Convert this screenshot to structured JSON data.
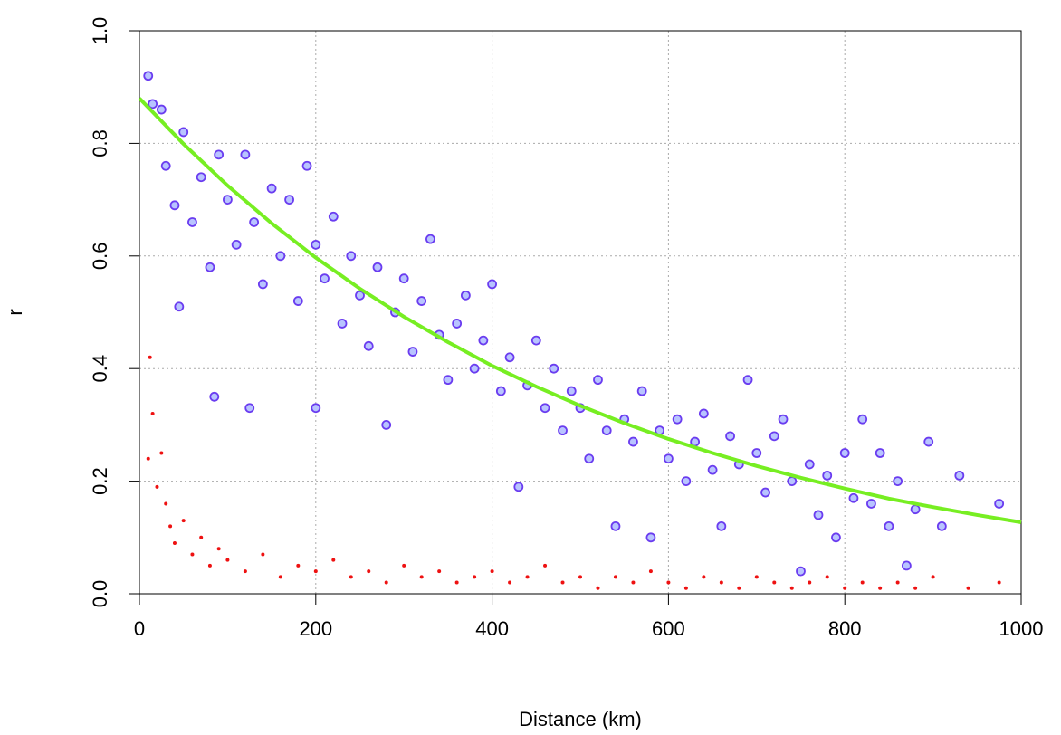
{
  "chart_data": {
    "type": "scatter",
    "x_label": "Distance (km)",
    "y_label": "r",
    "xlim": [
      0,
      1000
    ],
    "ylim": [
      0,
      1
    ],
    "xticks": [
      0,
      200,
      400,
      600,
      800,
      1000
    ],
    "yticks": [
      {
        "value": 0,
        "label": "0.0"
      },
      0.2,
      0.4,
      0.6,
      0.8,
      {
        "value": 1,
        "label": "1.0"
      }
    ],
    "grid": true,
    "series": [
      {
        "mode": "markers",
        "color": "#6a3cf0",
        "fill": "#b8c4ff",
        "x": [
          10,
          15,
          25,
          30,
          40,
          45,
          50,
          60,
          70,
          80,
          85,
          90,
          100,
          110,
          120,
          125,
          130,
          140,
          150,
          160,
          170,
          180,
          190,
          200,
          200,
          210,
          220,
          230,
          240,
          250,
          260,
          270,
          280,
          290,
          300,
          310,
          320,
          330,
          340,
          350,
          360,
          370,
          380,
          390,
          400,
          410,
          420,
          430,
          440,
          450,
          460,
          470,
          480,
          490,
          500,
          510,
          520,
          530,
          540,
          550,
          560,
          570,
          580,
          590,
          600,
          610,
          620,
          630,
          640,
          650,
          660,
          670,
          680,
          690,
          700,
          710,
          720,
          730,
          740,
          750,
          760,
          770,
          780,
          790,
          800,
          810,
          820,
          830,
          840,
          850,
          860,
          870,
          880,
          895,
          910,
          930,
          975
        ],
        "values": [
          0.92,
          0.87,
          0.86,
          0.76,
          0.69,
          0.51,
          0.82,
          0.66,
          0.74,
          0.58,
          0.35,
          0.78,
          0.7,
          0.62,
          0.78,
          0.33,
          0.66,
          0.55,
          0.72,
          0.6,
          0.7,
          0.52,
          0.76,
          0.62,
          0.33,
          0.56,
          0.67,
          0.48,
          0.6,
          0.53,
          0.44,
          0.58,
          0.3,
          0.5,
          0.56,
          0.43,
          0.52,
          0.63,
          0.46,
          0.38,
          0.48,
          0.53,
          0.4,
          0.45,
          0.55,
          0.36,
          0.42,
          0.19,
          0.37,
          0.45,
          0.33,
          0.4,
          0.29,
          0.36,
          0.33,
          0.24,
          0.38,
          0.29,
          0.12,
          0.31,
          0.27,
          0.36,
          0.1,
          0.29,
          0.24,
          0.31,
          0.2,
          0.27,
          0.32,
          0.22,
          0.12,
          0.28,
          0.23,
          0.38,
          0.25,
          0.18,
          0.28,
          0.31,
          0.2,
          0.04,
          0.23,
          0.14,
          0.21,
          0.1,
          0.25,
          0.17,
          0.31,
          0.16,
          0.25,
          0.12,
          0.2,
          0.05,
          0.15,
          0.27,
          0.12,
          0.21,
          0.16
        ]
      },
      {
        "mode": "markers",
        "color": "#ee1111",
        "fill": "#ee1111",
        "x": [
          10,
          12,
          15,
          20,
          25,
          30,
          35,
          40,
          50,
          60,
          70,
          80,
          90,
          100,
          120,
          140,
          160,
          180,
          200,
          220,
          240,
          260,
          280,
          300,
          320,
          340,
          360,
          380,
          400,
          420,
          440,
          460,
          480,
          500,
          520,
          540,
          560,
          580,
          600,
          620,
          640,
          660,
          680,
          700,
          720,
          740,
          760,
          780,
          800,
          820,
          840,
          860,
          880,
          900,
          940,
          975
        ],
        "values": [
          0.24,
          0.42,
          0.32,
          0.19,
          0.25,
          0.16,
          0.12,
          0.09,
          0.13,
          0.07,
          0.1,
          0.05,
          0.08,
          0.06,
          0.04,
          0.07,
          0.03,
          0.05,
          0.04,
          0.06,
          0.03,
          0.04,
          0.02,
          0.05,
          0.03,
          0.04,
          0.02,
          0.03,
          0.04,
          0.02,
          0.03,
          0.05,
          0.02,
          0.03,
          0.01,
          0.03,
          0.02,
          0.04,
          0.02,
          0.01,
          0.03,
          0.02,
          0.01,
          0.03,
          0.02,
          0.01,
          0.02,
          0.03,
          0.01,
          0.02,
          0.01,
          0.02,
          0.01,
          0.03,
          0.01,
          0.02
        ]
      },
      {
        "mode": "line",
        "color": "#77ee22",
        "x": [
          0,
          50,
          100,
          150,
          200,
          250,
          300,
          350,
          400,
          450,
          500,
          550,
          600,
          650,
          700,
          750,
          800,
          850,
          900,
          950,
          1000
        ],
        "values": [
          0.88,
          0.799,
          0.725,
          0.658,
          0.597,
          0.542,
          0.492,
          0.447,
          0.405,
          0.368,
          0.334,
          0.303,
          0.275,
          0.25,
          0.227,
          0.206,
          0.187,
          0.169,
          0.154,
          0.14,
          0.127
        ]
      }
    ]
  }
}
